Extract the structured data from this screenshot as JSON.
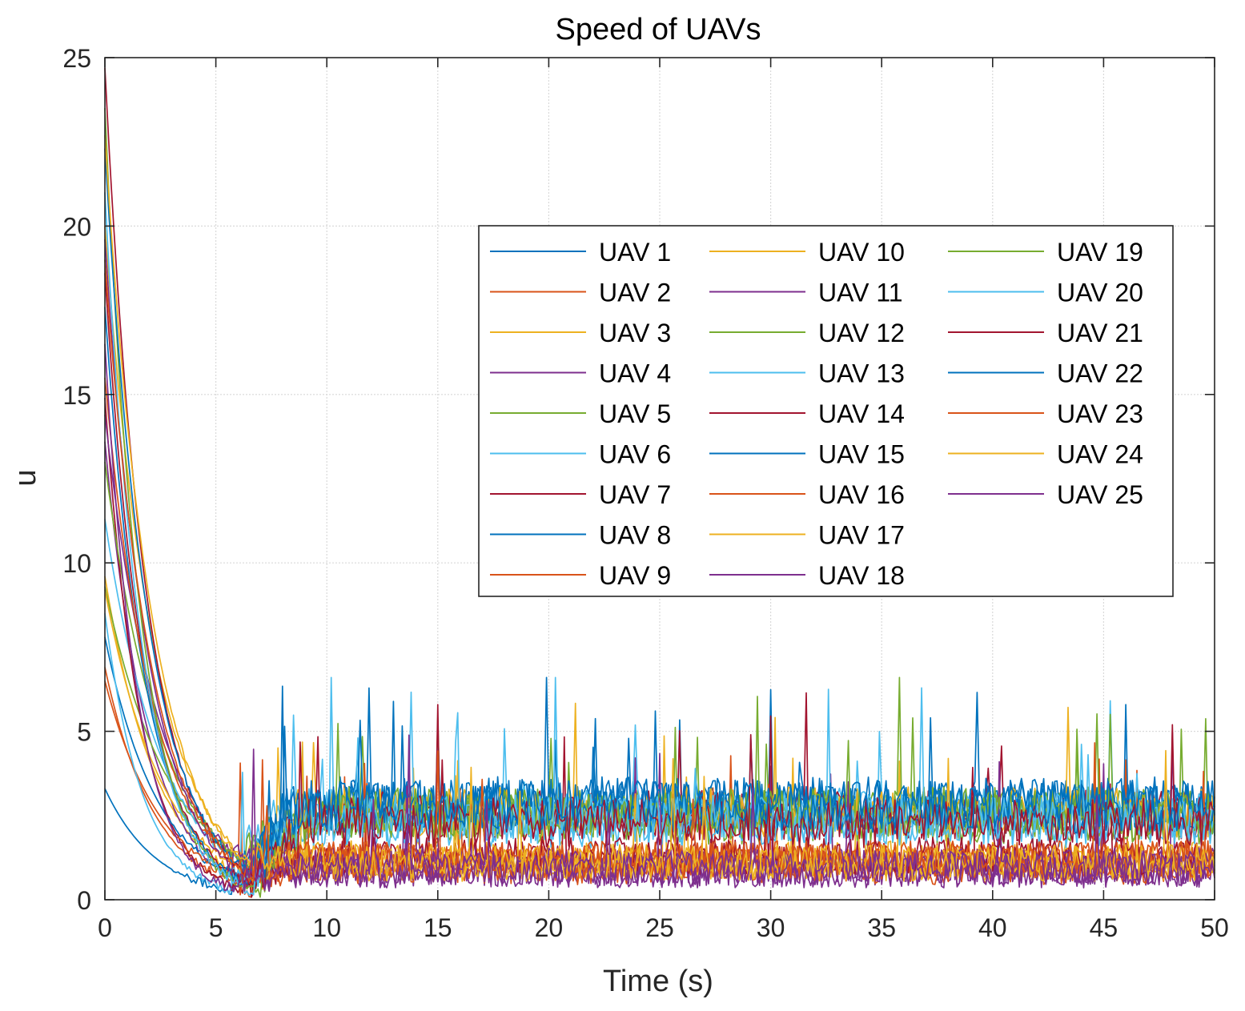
{
  "chart_data": {
    "type": "line",
    "title": "Speed of UAVs",
    "xlabel": "Time (s)",
    "ylabel": "u",
    "xlim": [
      0,
      50
    ],
    "ylim": [
      0,
      25
    ],
    "xticks": [
      0,
      5,
      10,
      15,
      20,
      25,
      30,
      35,
      40,
      45,
      50
    ],
    "yticks": [
      0,
      5,
      10,
      15,
      20,
      25
    ],
    "grid": true,
    "legend_position": "upper-right",
    "legend_columns": 3,
    "series": [
      {
        "name": "UAV 1",
        "color": "#0072BD",
        "initial_speed": 3.3,
        "transient_end_time": 5.6,
        "steady_mean": 2.8
      },
      {
        "name": "UAV 2",
        "color": "#D95319",
        "initial_speed": 6.9,
        "transient_end_time": 6.0,
        "steady_mean": 1.1
      },
      {
        "name": "UAV 3",
        "color": "#EDB120",
        "initial_speed": 9.6,
        "transient_end_time": 6.4,
        "steady_mean": 1.2
      },
      {
        "name": "UAV 4",
        "color": "#7E2F8E",
        "initial_speed": 13.6,
        "transient_end_time": 5.4,
        "steady_mean": 0.9
      },
      {
        "name": "UAV 5",
        "color": "#77AC30",
        "initial_speed": 9.3,
        "transient_end_time": 6.6,
        "steady_mean": 2.5
      },
      {
        "name": "UAV 6",
        "color": "#4DBEEE",
        "initial_speed": 11.3,
        "transient_end_time": 5.8,
        "steady_mean": 2.6
      },
      {
        "name": "UAV 7",
        "color": "#A2142F",
        "initial_speed": 14.9,
        "transient_end_time": 6.2,
        "steady_mean": 2.5
      },
      {
        "name": "UAV 8",
        "color": "#0072BD",
        "initial_speed": 7.8,
        "transient_end_time": 6.8,
        "steady_mean": 2.9
      },
      {
        "name": "UAV 9",
        "color": "#D95319",
        "initial_speed": 6.5,
        "transient_end_time": 5.9,
        "steady_mean": 1.0
      },
      {
        "name": "UAV 10",
        "color": "#EDB120",
        "initial_speed": 9.2,
        "transient_end_time": 6.3,
        "steady_mean": 2.6
      },
      {
        "name": "UAV 11",
        "color": "#7E2F8E",
        "initial_speed": 14.4,
        "transient_end_time": 6.5,
        "steady_mean": 0.9
      },
      {
        "name": "UAV 12",
        "color": "#77AC30",
        "initial_speed": 13.0,
        "transient_end_time": 6.1,
        "steady_mean": 2.4
      },
      {
        "name": "UAV 13",
        "color": "#4DBEEE",
        "initial_speed": 8.5,
        "transient_end_time": 5.7,
        "steady_mean": 2.3
      },
      {
        "name": "UAV 14",
        "color": "#A2142F",
        "initial_speed": 18.6,
        "transient_end_time": 6.6,
        "steady_mean": 1.3
      },
      {
        "name": "UAV 15",
        "color": "#0072BD",
        "initial_speed": 17.6,
        "transient_end_time": 6.0,
        "steady_mean": 2.7
      },
      {
        "name": "UAV 16",
        "color": "#D95319",
        "initial_speed": 15.5,
        "transient_end_time": 6.4,
        "steady_mean": 1.2
      },
      {
        "name": "UAV 17",
        "color": "#EDB120",
        "initial_speed": 20.0,
        "transient_end_time": 6.7,
        "steady_mean": 1.1
      },
      {
        "name": "UAV 18",
        "color": "#7E2F8E",
        "initial_speed": 19.6,
        "transient_end_time": 5.5,
        "steady_mean": 1.0
      },
      {
        "name": "UAV 19",
        "color": "#77AC30",
        "initial_speed": 23.5,
        "transient_end_time": 6.9,
        "steady_mean": 2.6
      },
      {
        "name": "UAV 20",
        "color": "#4DBEEE",
        "initial_speed": 21.0,
        "transient_end_time": 6.2,
        "steady_mean": 2.4
      },
      {
        "name": "UAV 21",
        "color": "#A2142F",
        "initial_speed": 24.7,
        "transient_end_time": 6.8,
        "steady_mean": 2.3
      },
      {
        "name": "UAV 22",
        "color": "#0072BD",
        "initial_speed": 22.3,
        "transient_end_time": 6.5,
        "steady_mean": 2.8
      },
      {
        "name": "UAV 23",
        "color": "#D95319",
        "initial_speed": 19.0,
        "transient_end_time": 6.1,
        "steady_mean": 1.2
      },
      {
        "name": "UAV 24",
        "color": "#EDB120",
        "initial_speed": 22.7,
        "transient_end_time": 6.3,
        "steady_mean": 1.1
      },
      {
        "name": "UAV 25",
        "color": "#7E2F8E",
        "initial_speed": 16.5,
        "transient_end_time": 5.9,
        "steady_mean": 0.9
      }
    ]
  }
}
